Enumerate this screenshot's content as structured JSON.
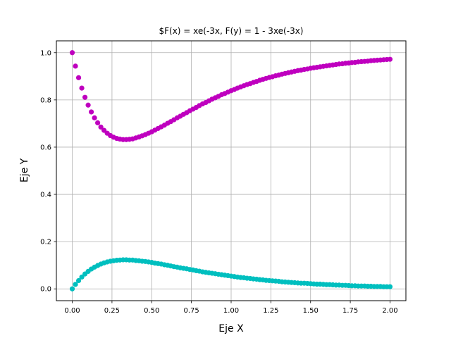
{
  "chart_data": {
    "type": "scatter",
    "title": "$F(x) = xe(-3x, F(y) = 1 - 3xe(-3x)",
    "xlabel": "Eje X",
    "ylabel": "Eje Y",
    "xlim": [
      -0.1,
      2.1
    ],
    "ylim": [
      -0.05,
      1.05
    ],
    "grid": true,
    "x_ticks": [
      "0.00",
      "0.25",
      "0.50",
      "0.75",
      "1.00",
      "1.25",
      "1.50",
      "1.75",
      "2.00"
    ],
    "y_ticks": [
      "0.0",
      "0.2",
      "0.4",
      "0.6",
      "0.8",
      "1.0"
    ],
    "series": [
      {
        "color": "#bf00bf",
        "x": [
          0.0,
          0.02,
          0.04,
          0.06,
          0.08,
          0.1,
          0.12,
          0.14,
          0.16,
          0.18,
          0.2,
          0.22,
          0.24,
          0.26,
          0.28,
          0.3,
          0.32,
          0.34,
          0.36,
          0.38,
          0.4,
          0.42,
          0.44,
          0.46,
          0.48,
          0.5,
          0.52,
          0.54,
          0.56,
          0.58,
          0.6,
          0.62,
          0.64,
          0.66,
          0.68,
          0.7,
          0.72,
          0.74,
          0.76,
          0.78,
          0.8,
          0.82,
          0.84,
          0.86,
          0.88,
          0.9,
          0.92,
          0.94,
          0.96,
          0.98,
          1.0,
          1.02,
          1.04,
          1.06,
          1.08,
          1.1,
          1.12,
          1.14,
          1.16,
          1.18,
          1.2,
          1.22,
          1.24,
          1.26,
          1.28,
          1.3,
          1.32,
          1.34,
          1.36,
          1.38,
          1.4,
          1.42,
          1.44,
          1.46,
          1.48,
          1.5,
          1.52,
          1.54,
          1.56,
          1.58,
          1.6,
          1.62,
          1.64,
          1.66,
          1.68,
          1.7,
          1.72,
          1.74,
          1.76,
          1.78,
          1.8,
          1.82,
          1.84,
          1.86,
          1.88,
          1.9,
          1.92,
          1.94,
          1.96,
          1.98,
          2.0
        ],
        "y": [
          1.0,
          0.943,
          0.894,
          0.85,
          0.811,
          0.778,
          0.749,
          0.724,
          0.703,
          0.685,
          0.671,
          0.659,
          0.649,
          0.642,
          0.637,
          0.634,
          0.632,
          0.632,
          0.633,
          0.635,
          0.639,
          0.643,
          0.648,
          0.653,
          0.659,
          0.665,
          0.672,
          0.679,
          0.686,
          0.693,
          0.701,
          0.708,
          0.716,
          0.724,
          0.731,
          0.739,
          0.746,
          0.754,
          0.761,
          0.768,
          0.776,
          0.783,
          0.789,
          0.796,
          0.803,
          0.809,
          0.815,
          0.822,
          0.827,
          0.833,
          0.839,
          0.844,
          0.85,
          0.855,
          0.86,
          0.865,
          0.869,
          0.874,
          0.878,
          0.883,
          0.887,
          0.891,
          0.895,
          0.898,
          0.902,
          0.905,
          0.909,
          0.912,
          0.915,
          0.918,
          0.921,
          0.924,
          0.926,
          0.929,
          0.931,
          0.934,
          0.936,
          0.938,
          0.94,
          0.942,
          0.944,
          0.946,
          0.948,
          0.95,
          0.952,
          0.953,
          0.955,
          0.956,
          0.958,
          0.959,
          0.961,
          0.962,
          0.963,
          0.964,
          0.966,
          0.967,
          0.968,
          0.969,
          0.97,
          0.971,
          0.972
        ]
      },
      {
        "color": "#00bfbf",
        "x": [
          0.0,
          0.02,
          0.04,
          0.06,
          0.08,
          0.1,
          0.12,
          0.14,
          0.16,
          0.18,
          0.2,
          0.22,
          0.24,
          0.26,
          0.28,
          0.3,
          0.32,
          0.34,
          0.36,
          0.38,
          0.4,
          0.42,
          0.44,
          0.46,
          0.48,
          0.5,
          0.52,
          0.54,
          0.56,
          0.58,
          0.6,
          0.62,
          0.64,
          0.66,
          0.68,
          0.7,
          0.72,
          0.74,
          0.76,
          0.78,
          0.8,
          0.82,
          0.84,
          0.86,
          0.88,
          0.9,
          0.92,
          0.94,
          0.96,
          0.98,
          1.0,
          1.02,
          1.04,
          1.06,
          1.08,
          1.1,
          1.12,
          1.14,
          1.16,
          1.18,
          1.2,
          1.22,
          1.24,
          1.26,
          1.28,
          1.3,
          1.32,
          1.34,
          1.36,
          1.38,
          1.4,
          1.42,
          1.44,
          1.46,
          1.48,
          1.5,
          1.52,
          1.54,
          1.56,
          1.58,
          1.6,
          1.62,
          1.64,
          1.66,
          1.68,
          1.7,
          1.72,
          1.74,
          1.76,
          1.78,
          1.8,
          1.82,
          1.84,
          1.86,
          1.88,
          1.9,
          1.92,
          1.94,
          1.96,
          1.98,
          2.0
        ],
        "y": [
          0.0,
          0.019,
          0.035,
          0.05,
          0.063,
          0.074,
          0.084,
          0.092,
          0.099,
          0.105,
          0.11,
          0.114,
          0.117,
          0.119,
          0.121,
          0.122,
          0.123,
          0.123,
          0.122,
          0.122,
          0.12,
          0.119,
          0.117,
          0.116,
          0.114,
          0.112,
          0.109,
          0.107,
          0.105,
          0.102,
          0.1,
          0.097,
          0.094,
          0.092,
          0.089,
          0.087,
          0.085,
          0.082,
          0.08,
          0.077,
          0.075,
          0.072,
          0.07,
          0.068,
          0.066,
          0.064,
          0.062,
          0.06,
          0.058,
          0.056,
          0.054,
          0.052,
          0.05,
          0.048,
          0.047,
          0.045,
          0.044,
          0.042,
          0.041,
          0.039,
          0.038,
          0.036,
          0.035,
          0.034,
          0.033,
          0.032,
          0.03,
          0.029,
          0.028,
          0.027,
          0.026,
          0.025,
          0.024,
          0.024,
          0.023,
          0.022,
          0.021,
          0.02,
          0.02,
          0.019,
          0.018,
          0.018,
          0.017,
          0.016,
          0.016,
          0.015,
          0.015,
          0.014,
          0.013,
          0.013,
          0.012,
          0.012,
          0.012,
          0.011,
          0.011,
          0.01,
          0.01,
          0.01,
          0.009,
          0.009,
          0.009
        ]
      }
    ]
  }
}
